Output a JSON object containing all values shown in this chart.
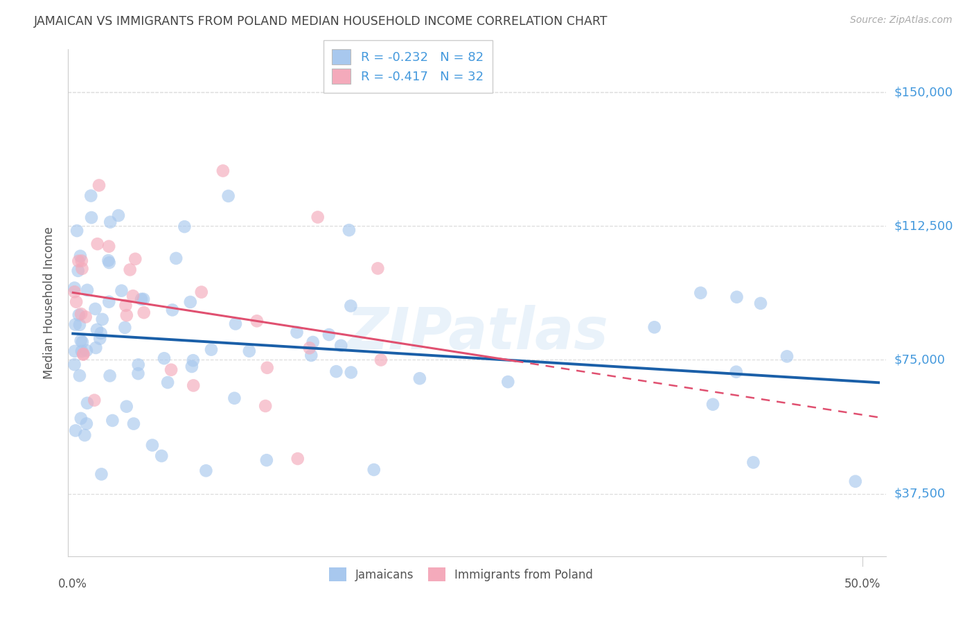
{
  "title": "JAMAICAN VS IMMIGRANTS FROM POLAND MEDIAN HOUSEHOLD INCOME CORRELATION CHART",
  "source": "Source: ZipAtlas.com",
  "ylabel": "Median Household Income",
  "xlim_min": -0.003,
  "xlim_max": 0.515,
  "ylim_min": 20000,
  "ylim_max": 162000,
  "ytick_vals": [
    37500,
    75000,
    112500,
    150000
  ],
  "ytick_labels": [
    "$37,500",
    "$75,000",
    "$112,500",
    "$150,000"
  ],
  "xtick_vals": [
    0.0,
    0.1,
    0.2,
    0.3,
    0.4,
    0.5
  ],
  "legend_labels": [
    "Jamaicans",
    "Immigrants from Poland"
  ],
  "R_jamaican": -0.232,
  "N_jamaican": 82,
  "R_poland": -0.417,
  "N_poland": 32,
  "blue_scatter": "#A8C8EE",
  "pink_scatter": "#F4AABB",
  "blue_line": "#1A5FA8",
  "pink_line": "#E05070",
  "bg_color": "#FFFFFF",
  "grid_color": "#DDDDDD",
  "tick_color": "#4499DD",
  "watermark_text": "ZIPatlas",
  "title_color": "#444444",
  "label_color": "#555555",
  "legend_text_color": "#4499DD",
  "source_color": "#AAAAAA"
}
